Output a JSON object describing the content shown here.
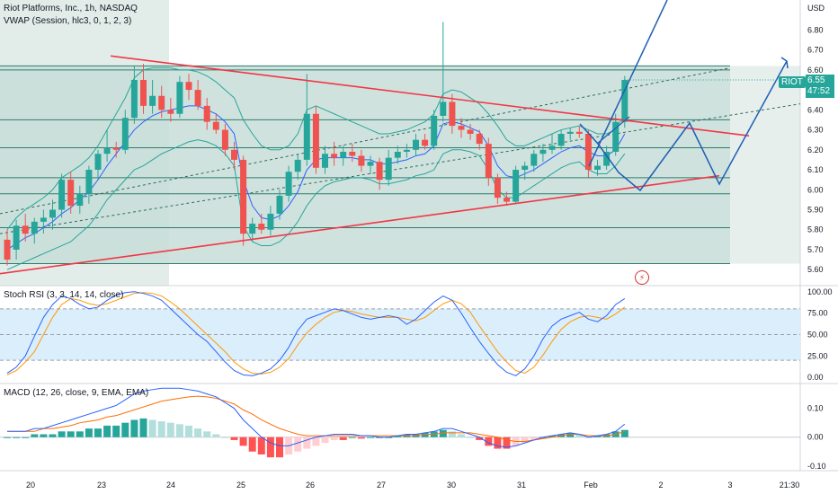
{
  "header": {
    "title": "Riot Platforms, Inc., 1h, NASDAQ",
    "vwap_legend": "VWAP (Session, hlc3, 0, 1, 2, 3)",
    "stoch_legend": "Stoch RSI (3, 3, 14, 14, close)",
    "macd_legend": "MACD (12, 26, close, 9, EMA, EMA)"
  },
  "price_tag": {
    "symbol": "RIOT",
    "price": "6.55",
    "countdown": "47:52"
  },
  "colors": {
    "up": "#26a69a",
    "down": "#ef5350",
    "trend": "#f23645",
    "projection": "#1e5fb4",
    "vwap": "#2962ff",
    "band": "#26a69a"
  },
  "chart_data": [
    {
      "type": "candlestick",
      "title": "Riot Platforms, Inc., 1h, NASDAQ",
      "unit": "USD",
      "ylim": [
        5.52,
        6.95
      ],
      "y_ticks": [
        "6.80",
        "6.70",
        "6.60",
        "6.50",
        "6.40",
        "6.30",
        "6.20",
        "6.10",
        "6.00",
        "5.90",
        "5.80",
        "5.70",
        "5.60"
      ],
      "x_ticks": [
        "20",
        "23",
        "24",
        "25",
        "26",
        "27",
        "30",
        "31",
        "Feb",
        "2",
        "3",
        "21:30"
      ],
      "horizontal_levels": [
        6.62,
        6.6,
        6.35,
        6.21,
        6.06,
        5.98,
        5.81,
        5.63
      ],
      "trend_lines": [
        {
          "from": [
            123,
            6.67
          ],
          "to": [
            833,
            6.27
          ]
        },
        {
          "from": [
            0,
            5.58
          ],
          "to": [
            800,
            6.07
          ]
        }
      ],
      "candles": [
        {
          "o": 5.75,
          "h": 5.8,
          "l": 5.62,
          "c": 5.65
        },
        {
          "o": 5.7,
          "h": 5.85,
          "l": 5.65,
          "c": 5.82
        },
        {
          "o": 5.82,
          "h": 5.88,
          "l": 5.74,
          "c": 5.78
        },
        {
          "o": 5.78,
          "h": 5.86,
          "l": 5.73,
          "c": 5.84
        },
        {
          "o": 5.84,
          "h": 5.9,
          "l": 5.78,
          "c": 5.86
        },
        {
          "o": 5.86,
          "h": 5.95,
          "l": 5.8,
          "c": 5.9
        },
        {
          "o": 5.9,
          "h": 6.08,
          "l": 5.86,
          "c": 6.05
        },
        {
          "o": 6.05,
          "h": 6.09,
          "l": 5.88,
          "c": 5.92
        },
        {
          "o": 5.92,
          "h": 6.02,
          "l": 5.88,
          "c": 5.98
        },
        {
          "o": 5.98,
          "h": 6.12,
          "l": 5.93,
          "c": 6.1
        },
        {
          "o": 6.1,
          "h": 6.2,
          "l": 6.05,
          "c": 6.18
        },
        {
          "o": 6.18,
          "h": 6.3,
          "l": 6.14,
          "c": 6.21
        },
        {
          "o": 6.21,
          "h": 6.24,
          "l": 6.16,
          "c": 6.2
        },
        {
          "o": 6.2,
          "h": 6.4,
          "l": 6.18,
          "c": 6.36
        },
        {
          "o": 6.36,
          "h": 6.62,
          "l": 6.33,
          "c": 6.55
        },
        {
          "o": 6.55,
          "h": 6.63,
          "l": 6.38,
          "c": 6.42
        },
        {
          "o": 6.42,
          "h": 6.55,
          "l": 6.38,
          "c": 6.47
        },
        {
          "o": 6.47,
          "h": 6.52,
          "l": 6.36,
          "c": 6.4
        },
        {
          "o": 6.4,
          "h": 6.46,
          "l": 6.34,
          "c": 6.38
        },
        {
          "o": 6.38,
          "h": 6.57,
          "l": 6.36,
          "c": 6.54
        },
        {
          "o": 6.54,
          "h": 6.58,
          "l": 6.45,
          "c": 6.5
        },
        {
          "o": 6.5,
          "h": 6.55,
          "l": 6.4,
          "c": 6.42
        },
        {
          "o": 6.42,
          "h": 6.46,
          "l": 6.3,
          "c": 6.34
        },
        {
          "o": 6.34,
          "h": 6.38,
          "l": 6.28,
          "c": 6.3
        },
        {
          "o": 6.3,
          "h": 6.33,
          "l": 6.17,
          "c": 6.2
        },
        {
          "o": 6.2,
          "h": 6.24,
          "l": 6.1,
          "c": 6.15
        },
        {
          "o": 6.15,
          "h": 6.17,
          "l": 5.72,
          "c": 5.78
        },
        {
          "o": 5.78,
          "h": 5.86,
          "l": 5.74,
          "c": 5.83
        },
        {
          "o": 5.83,
          "h": 5.88,
          "l": 5.78,
          "c": 5.8
        },
        {
          "o": 5.8,
          "h": 5.92,
          "l": 5.77,
          "c": 5.88
        },
        {
          "o": 5.88,
          "h": 6.0,
          "l": 5.85,
          "c": 5.97
        },
        {
          "o": 5.97,
          "h": 6.12,
          "l": 5.94,
          "c": 6.09
        },
        {
          "o": 6.09,
          "h": 6.18,
          "l": 6.05,
          "c": 6.15
        },
        {
          "o": 6.15,
          "h": 6.58,
          "l": 6.12,
          "c": 6.38
        },
        {
          "o": 6.38,
          "h": 6.42,
          "l": 6.08,
          "c": 6.11
        },
        {
          "o": 6.11,
          "h": 6.22,
          "l": 6.08,
          "c": 6.18
        },
        {
          "o": 6.18,
          "h": 6.24,
          "l": 6.12,
          "c": 6.16
        },
        {
          "o": 6.16,
          "h": 6.22,
          "l": 6.12,
          "c": 6.19
        },
        {
          "o": 6.19,
          "h": 6.23,
          "l": 6.14,
          "c": 6.17
        },
        {
          "o": 6.17,
          "h": 6.2,
          "l": 6.09,
          "c": 6.12
        },
        {
          "o": 6.12,
          "h": 6.17,
          "l": 6.08,
          "c": 6.14
        },
        {
          "o": 6.14,
          "h": 6.16,
          "l": 6.0,
          "c": 6.05
        },
        {
          "o": 6.05,
          "h": 6.2,
          "l": 6.02,
          "c": 6.16
        },
        {
          "o": 6.16,
          "h": 6.22,
          "l": 6.13,
          "c": 6.19
        },
        {
          "o": 6.19,
          "h": 6.23,
          "l": 6.16,
          "c": 6.2
        },
        {
          "o": 6.2,
          "h": 6.28,
          "l": 6.17,
          "c": 6.25
        },
        {
          "o": 6.25,
          "h": 6.28,
          "l": 6.2,
          "c": 6.22
        },
        {
          "o": 6.22,
          "h": 6.4,
          "l": 6.2,
          "c": 6.37
        },
        {
          "o": 6.37,
          "h": 6.84,
          "l": 6.34,
          "c": 6.44
        },
        {
          "o": 6.44,
          "h": 6.48,
          "l": 6.28,
          "c": 6.32
        },
        {
          "o": 6.32,
          "h": 6.36,
          "l": 6.26,
          "c": 6.3
        },
        {
          "o": 6.3,
          "h": 6.33,
          "l": 6.25,
          "c": 6.28
        },
        {
          "o": 6.28,
          "h": 6.3,
          "l": 6.2,
          "c": 6.23
        },
        {
          "o": 6.23,
          "h": 6.26,
          "l": 6.02,
          "c": 6.06
        },
        {
          "o": 6.06,
          "h": 6.08,
          "l": 5.93,
          "c": 5.96
        },
        {
          "o": 5.96,
          "h": 5.99,
          "l": 5.92,
          "c": 5.94
        },
        {
          "o": 5.94,
          "h": 6.12,
          "l": 5.93,
          "c": 6.1
        },
        {
          "o": 6.1,
          "h": 6.14,
          "l": 6.05,
          "c": 6.12
        },
        {
          "o": 6.12,
          "h": 6.2,
          "l": 6.09,
          "c": 6.18
        },
        {
          "o": 6.18,
          "h": 6.23,
          "l": 6.14,
          "c": 6.2
        },
        {
          "o": 6.2,
          "h": 6.28,
          "l": 6.18,
          "c": 6.22
        },
        {
          "o": 6.22,
          "h": 6.3,
          "l": 6.2,
          "c": 6.28
        },
        {
          "o": 6.28,
          "h": 6.31,
          "l": 6.25,
          "c": 6.29
        },
        {
          "o": 6.29,
          "h": 6.32,
          "l": 6.26,
          "c": 6.28
        },
        {
          "o": 6.28,
          "h": 6.3,
          "l": 6.06,
          "c": 6.1
        },
        {
          "o": 6.1,
          "h": 6.15,
          "l": 6.07,
          "c": 6.12
        },
        {
          "o": 6.12,
          "h": 6.22,
          "l": 6.1,
          "c": 6.19
        },
        {
          "o": 6.19,
          "h": 6.38,
          "l": 6.17,
          "c": 6.34
        },
        {
          "o": 6.34,
          "h": 6.57,
          "l": 6.31,
          "c": 6.55
        }
      ],
      "vwap": [
        5.7,
        5.73,
        5.76,
        5.78,
        5.81,
        5.84,
        5.88,
        5.91,
        5.95,
        5.99,
        6.05,
        6.12,
        6.18,
        6.24,
        6.3,
        6.34,
        6.37,
        6.39,
        6.4,
        6.41,
        6.42,
        6.42,
        6.4,
        6.38,
        6.34,
        6.28,
        6.05,
        5.92,
        5.86,
        5.85,
        5.87,
        5.92,
        5.99,
        6.1,
        6.15,
        6.16,
        6.16,
        6.16,
        6.16,
        6.15,
        6.15,
        6.13,
        6.13,
        6.14,
        6.15,
        6.17,
        6.18,
        6.22,
        6.33,
        6.34,
        6.33,
        6.31,
        6.29,
        6.22,
        6.12,
        6.07,
        6.06,
        6.08,
        6.1,
        6.13,
        6.16,
        6.19,
        6.21,
        6.22,
        6.19,
        6.17,
        6.17,
        6.2,
        6.28
      ],
      "upper_band": [
        5.8,
        5.86,
        5.9,
        5.93,
        5.96,
        6.0,
        6.06,
        6.09,
        6.12,
        6.16,
        6.22,
        6.3,
        6.38,
        6.46,
        6.56,
        6.6,
        6.61,
        6.61,
        6.61,
        6.6,
        6.6,
        6.59,
        6.57,
        6.54,
        6.5,
        6.46,
        6.35,
        6.28,
        6.22,
        6.2,
        6.2,
        6.22,
        6.28,
        6.4,
        6.42,
        6.4,
        6.38,
        6.36,
        6.34,
        6.32,
        6.3,
        6.28,
        6.28,
        6.29,
        6.3,
        6.32,
        6.34,
        6.38,
        6.48,
        6.5,
        6.49,
        6.46,
        6.43,
        6.38,
        6.32,
        6.25,
        6.22,
        6.22,
        6.24,
        6.26,
        6.28,
        6.3,
        6.31,
        6.32,
        6.3,
        6.28,
        6.28,
        6.3,
        6.38
      ],
      "lower_band": [
        5.6,
        5.62,
        5.64,
        5.66,
        5.68,
        5.7,
        5.72,
        5.74,
        5.78,
        5.82,
        5.88,
        5.95,
        6.0,
        6.05,
        6.1,
        6.12,
        6.15,
        6.18,
        6.2,
        6.22,
        6.24,
        6.25,
        6.24,
        6.22,
        6.18,
        6.12,
        5.82,
        5.74,
        5.72,
        5.72,
        5.74,
        5.78,
        5.84,
        5.92,
        5.98,
        6.02,
        6.04,
        6.05,
        6.06,
        6.06,
        6.05,
        6.03,
        6.03,
        6.04,
        6.05,
        6.07,
        6.08,
        6.1,
        6.18,
        6.2,
        6.2,
        6.19,
        6.17,
        6.1,
        6.0,
        5.96,
        5.96,
        5.99,
        6.02,
        6.05,
        6.08,
        6.11,
        6.13,
        6.14,
        6.1,
        6.08,
        6.08,
        6.12,
        6.18
      ]
    },
    {
      "type": "line",
      "title": "Stoch RSI (3, 3, 14, 14, close)",
      "ylim": [
        -5,
        105
      ],
      "y_ticks": [
        "100.00",
        "75.00",
        "50.00",
        "25.00",
        "0.00"
      ],
      "band": [
        20,
        80
      ],
      "series": [
        {
          "name": "K",
          "values": [
            5,
            12,
            25,
            48,
            70,
            85,
            95,
            92,
            85,
            80,
            82,
            90,
            96,
            99,
            100,
            98,
            95,
            90,
            80,
            70,
            60,
            50,
            42,
            30,
            18,
            8,
            3,
            2,
            5,
            10,
            20,
            35,
            55,
            68,
            72,
            76,
            80,
            78,
            74,
            70,
            68,
            70,
            72,
            70,
            62,
            68,
            78,
            88,
            95,
            90,
            75,
            58,
            42,
            28,
            15,
            6,
            2,
            10,
            25,
            45,
            60,
            68,
            72,
            76,
            68,
            65,
            72,
            85,
            92
          ]
        },
        {
          "name": "D",
          "values": [
            3,
            8,
            18,
            30,
            50,
            70,
            85,
            92,
            90,
            86,
            84,
            86,
            90,
            94,
            98,
            99,
            98,
            95,
            88,
            80,
            70,
            60,
            50,
            40,
            30,
            18,
            10,
            5,
            4,
            6,
            12,
            22,
            38,
            52,
            62,
            70,
            76,
            78,
            77,
            74,
            72,
            70,
            70,
            70,
            68,
            66,
            70,
            78,
            86,
            90,
            86,
            76,
            60,
            45,
            30,
            18,
            8,
            5,
            12,
            26,
            42,
            56,
            65,
            70,
            72,
            70,
            68,
            74,
            82
          ]
        }
      ]
    },
    {
      "type": "bar",
      "title": "MACD (12, 26, close, 9, EMA, EMA)",
      "ylim": [
        -0.11,
        0.18
      ],
      "y_ticks": [
        "0.10",
        "0.00",
        "-0.10"
      ],
      "histogram": [
        0.0,
        0.0,
        0.0,
        0.01,
        0.01,
        0.01,
        0.02,
        0.02,
        0.02,
        0.03,
        0.03,
        0.04,
        0.04,
        0.05,
        0.06,
        0.065,
        0.06,
        0.055,
        0.05,
        0.045,
        0.04,
        0.03,
        0.02,
        0.01,
        0.0,
        -0.01,
        -0.03,
        -0.05,
        -0.06,
        -0.07,
        -0.07,
        -0.06,
        -0.05,
        -0.04,
        -0.03,
        -0.02,
        -0.01,
        -0.01,
        0.0,
        -0.005,
        0.0,
        0.0,
        0.0,
        0.005,
        0.01,
        0.01,
        0.015,
        0.02,
        0.025,
        0.02,
        0.01,
        0.0,
        -0.01,
        -0.03,
        -0.04,
        -0.04,
        -0.03,
        -0.02,
        -0.01,
        0.0,
        0.005,
        0.01,
        0.015,
        0.01,
        0.0,
        0.005,
        0.01,
        0.02,
        0.025
      ],
      "series": [
        {
          "name": "MACD",
          "values": [
            0.02,
            0.02,
            0.02,
            0.03,
            0.03,
            0.04,
            0.05,
            0.06,
            0.07,
            0.08,
            0.09,
            0.1,
            0.11,
            0.13,
            0.15,
            0.16,
            0.165,
            0.17,
            0.17,
            0.17,
            0.165,
            0.16,
            0.15,
            0.14,
            0.12,
            0.1,
            0.06,
            0.03,
            0.0,
            -0.02,
            -0.03,
            -0.03,
            -0.02,
            -0.01,
            0.0,
            0.005,
            0.01,
            0.01,
            0.01,
            0.005,
            0.005,
            0.0,
            0.0,
            0.005,
            0.01,
            0.01,
            0.015,
            0.02,
            0.03,
            0.03,
            0.02,
            0.01,
            0.0,
            -0.02,
            -0.03,
            -0.035,
            -0.03,
            -0.02,
            -0.01,
            0.0,
            0.005,
            0.01,
            0.015,
            0.01,
            0.0,
            0.005,
            0.01,
            0.02,
            0.045
          ]
        },
        {
          "name": "Signal",
          "values": [
            0.02,
            0.02,
            0.02,
            0.02,
            0.03,
            0.03,
            0.035,
            0.04,
            0.05,
            0.055,
            0.06,
            0.07,
            0.075,
            0.085,
            0.095,
            0.105,
            0.115,
            0.125,
            0.13,
            0.135,
            0.14,
            0.142,
            0.14,
            0.135,
            0.125,
            0.115,
            0.095,
            0.08,
            0.06,
            0.045,
            0.03,
            0.02,
            0.01,
            0.005,
            0.005,
            0.005,
            0.005,
            0.005,
            0.005,
            0.005,
            0.005,
            0.005,
            0.005,
            0.005,
            0.005,
            0.005,
            0.01,
            0.01,
            0.015,
            0.015,
            0.015,
            0.015,
            0.01,
            0.005,
            0.0,
            -0.01,
            -0.015,
            -0.015,
            -0.01,
            -0.005,
            0.0,
            0.005,
            0.01,
            0.01,
            0.005,
            0.005,
            0.005,
            0.01,
            0.02
          ]
        }
      ]
    }
  ]
}
